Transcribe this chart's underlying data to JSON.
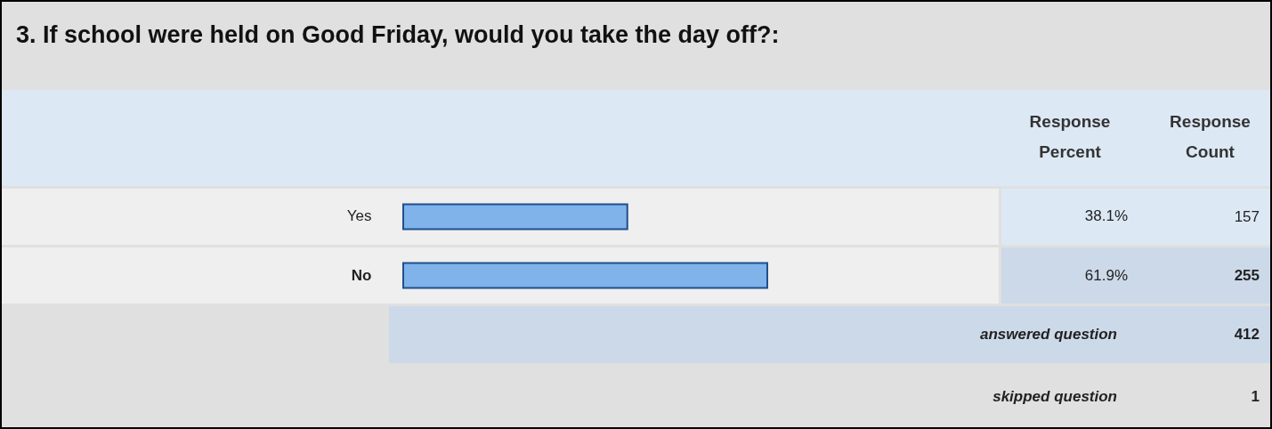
{
  "chart_data": {
    "type": "bar",
    "orientation": "horizontal",
    "title": "3. If school were held on Good Friday, would you take the day off?:",
    "categories": [
      "Yes",
      "No"
    ],
    "values": [
      38.1,
      61.9
    ],
    "value_labels": [
      "38.1%",
      "61.9%"
    ],
    "color": "#7fb3ea",
    "tick_labels": "y",
    "annotations": [
      "Response Percent",
      "Response Count",
      "157",
      "255",
      "answered question",
      "412",
      "skipped question",
      "1"
    ]
  }
}
